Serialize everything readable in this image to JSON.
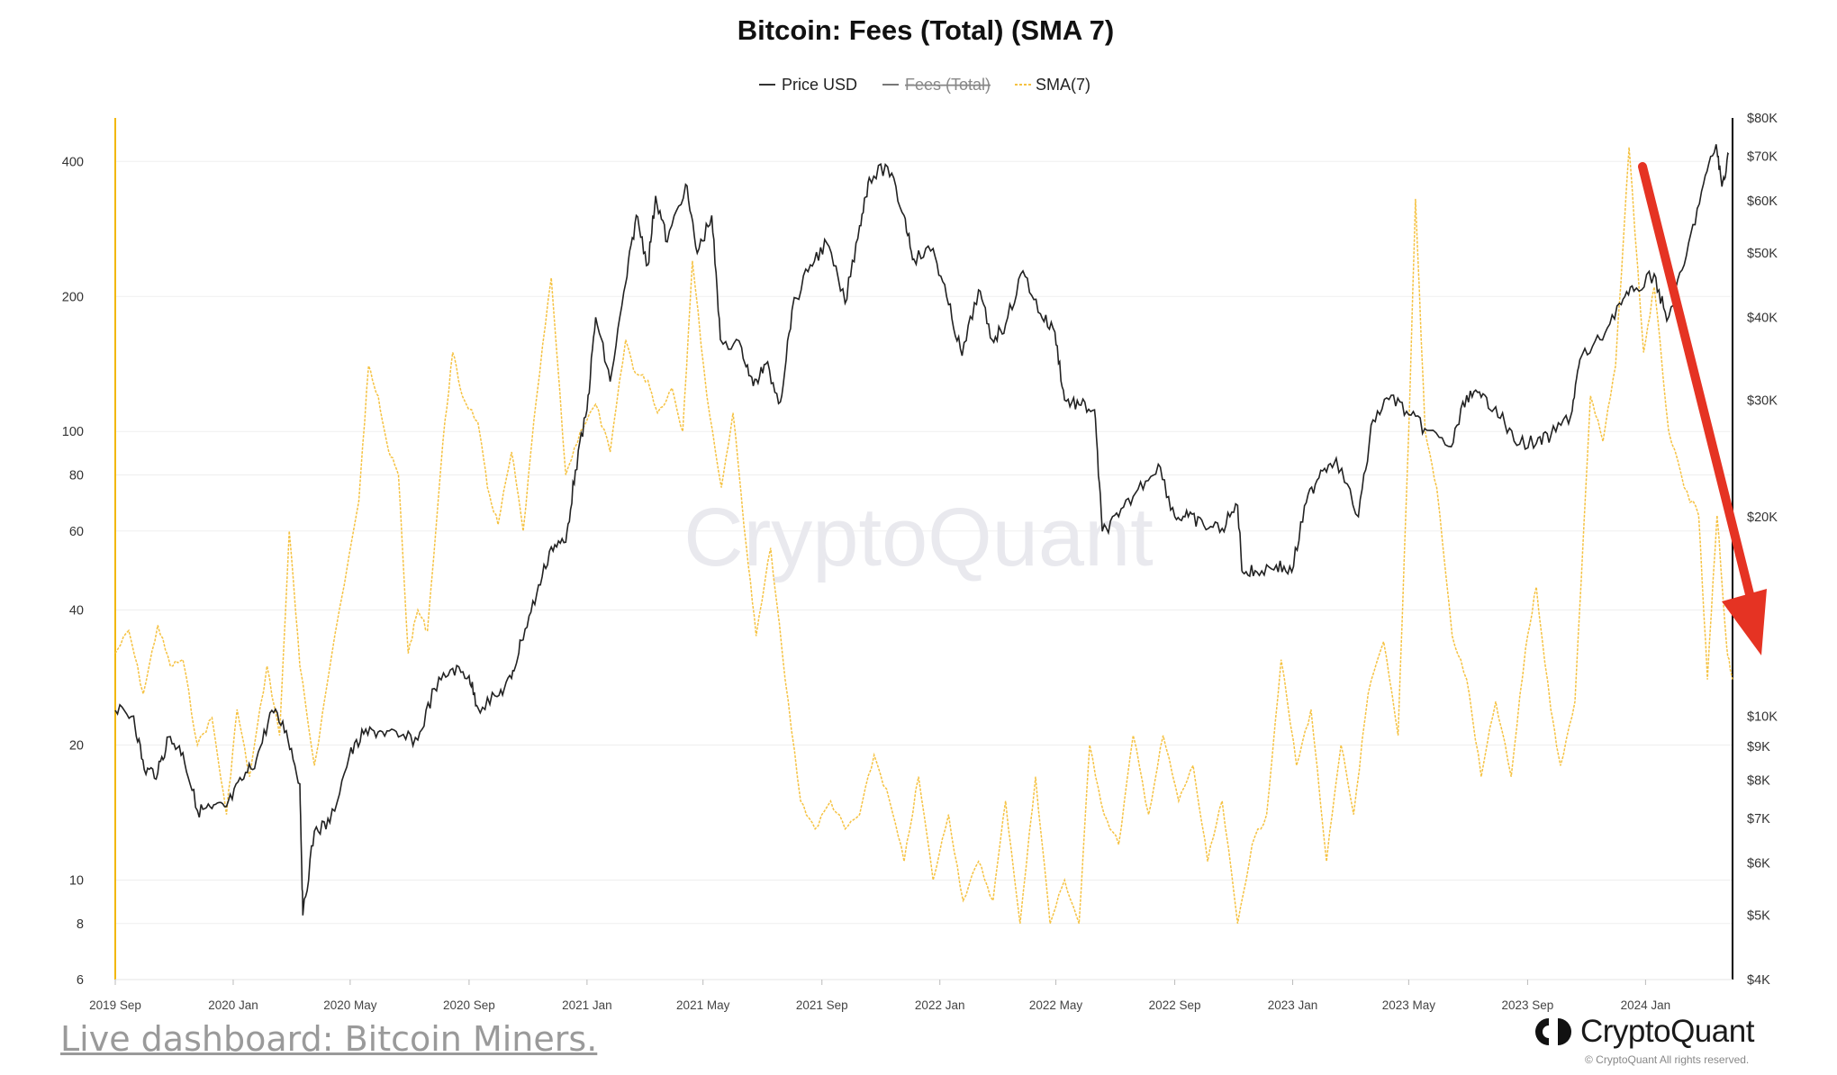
{
  "chart_data": {
    "type": "line",
    "title": "Bitcoin: Fees (Total) (SMA 7)",
    "legend": [
      {
        "name": "Price USD",
        "color": "#333333",
        "hidden": false
      },
      {
        "name": "Fees (Total)",
        "color": "#777777",
        "hidden": true
      },
      {
        "name": "SMA(7)",
        "color": "#f5c242",
        "hidden": false
      }
    ],
    "legend_position": "top-center",
    "x_ticks": [
      "2019 Sep",
      "2020 Jan",
      "2020 May",
      "2020 Sep",
      "2021 Jan",
      "2021 May",
      "2021 Sep",
      "2022 Jan",
      "2022 May",
      "2022 Sep",
      "2023 Jan",
      "2023 May",
      "2023 Sep",
      "2024 Jan"
    ],
    "x_range": [
      "2019-09-01",
      "2024-03-31"
    ],
    "y_left": {
      "scale": "log",
      "ticks": [
        "400",
        "200",
        "100",
        "80",
        "60",
        "40",
        "20",
        "10",
        "8",
        "6"
      ],
      "range": [
        6,
        500
      ]
    },
    "y_right": {
      "scale": "log",
      "ticks": [
        "$80K",
        "$70K",
        "$60K",
        "$50K",
        "$40K",
        "$30K",
        "$20K",
        "$10K",
        "$9K",
        "$8K",
        "$7K",
        "$6K",
        "$5K",
        "$4K"
      ],
      "range": [
        4000,
        80000
      ]
    },
    "grid": true,
    "annotation": "red downward arrow",
    "series": [
      {
        "name": "Price USD",
        "axis": "right",
        "points": [
          [
            "2019-09-01",
            10200
          ],
          [
            "2019-09-20",
            10000
          ],
          [
            "2019-10-01",
            8300
          ],
          [
            "2019-10-15",
            8200
          ],
          [
            "2019-10-26",
            9300
          ],
          [
            "2019-11-10",
            8800
          ],
          [
            "2019-11-25",
            7200
          ],
          [
            "2019-12-10",
            7250
          ],
          [
            "2019-12-25",
            7300
          ],
          [
            "2020-01-10",
            8000
          ],
          [
            "2020-01-25",
            8600
          ],
          [
            "2020-02-10",
            10200
          ],
          [
            "2020-02-25",
            9500
          ],
          [
            "2020-03-10",
            7900
          ],
          [
            "2020-03-13",
            5000
          ],
          [
            "2020-03-25",
            6700
          ],
          [
            "2020-04-10",
            6900
          ],
          [
            "2020-04-30",
            8700
          ],
          [
            "2020-05-15",
            9400
          ],
          [
            "2020-06-01",
            9500
          ],
          [
            "2020-06-20",
            9300
          ],
          [
            "2020-07-10",
            9200
          ],
          [
            "2020-07-27",
            11000
          ],
          [
            "2020-08-15",
            11800
          ],
          [
            "2020-09-01",
            11500
          ],
          [
            "2020-09-10",
            10300
          ],
          [
            "2020-09-30",
            10700
          ],
          [
            "2020-10-15",
            11400
          ],
          [
            "2020-10-25",
            13000
          ],
          [
            "2020-11-10",
            15300
          ],
          [
            "2020-11-25",
            18000
          ],
          [
            "2020-12-10",
            18300
          ],
          [
            "2020-12-20",
            23500
          ],
          [
            "2021-01-01",
            29000
          ],
          [
            "2021-01-10",
            40000
          ],
          [
            "2021-01-25",
            32000
          ],
          [
            "2021-02-10",
            45000
          ],
          [
            "2021-02-21",
            57000
          ],
          [
            "2021-03-05",
            48000
          ],
          [
            "2021-03-13",
            61000
          ],
          [
            "2021-03-25",
            52000
          ],
          [
            "2021-04-13",
            63500
          ],
          [
            "2021-04-25",
            50000
          ],
          [
            "2021-05-10",
            57000
          ],
          [
            "2021-05-19",
            37000
          ],
          [
            "2021-06-10",
            36000
          ],
          [
            "2021-06-22",
            31500
          ],
          [
            "2021-07-05",
            34000
          ],
          [
            "2021-07-20",
            29800
          ],
          [
            "2021-08-01",
            41000
          ],
          [
            "2021-08-20",
            48000
          ],
          [
            "2021-09-06",
            51800
          ],
          [
            "2021-09-25",
            42000
          ],
          [
            "2021-10-10",
            55000
          ],
          [
            "2021-10-20",
            65000
          ],
          [
            "2021-11-08",
            67500
          ],
          [
            "2021-11-25",
            57000
          ],
          [
            "2021-12-05",
            49000
          ],
          [
            "2021-12-25",
            50800
          ],
          [
            "2022-01-10",
            41800
          ],
          [
            "2022-01-24",
            35000
          ],
          [
            "2022-02-10",
            44000
          ],
          [
            "2022-02-24",
            37000
          ],
          [
            "2022-03-10",
            39000
          ],
          [
            "2022-03-28",
            47000
          ],
          [
            "2022-04-15",
            40500
          ],
          [
            "2022-04-30",
            38000
          ],
          [
            "2022-05-10",
            30000
          ],
          [
            "2022-05-25",
            29500
          ],
          [
            "2022-06-10",
            29000
          ],
          [
            "2022-06-18",
            19000
          ],
          [
            "2022-07-05",
            20000
          ],
          [
            "2022-07-25",
            22000
          ],
          [
            "2022-08-15",
            24000
          ],
          [
            "2022-09-01",
            20000
          ],
          [
            "2022-09-15",
            20000
          ],
          [
            "2022-10-01",
            19400
          ],
          [
            "2022-10-20",
            19200
          ],
          [
            "2022-11-05",
            20800
          ],
          [
            "2022-11-10",
            16500
          ],
          [
            "2022-11-25",
            16500
          ],
          [
            "2022-12-15",
            16900
          ],
          [
            "2022-12-31",
            16500
          ],
          [
            "2023-01-15",
            21000
          ],
          [
            "2023-01-30",
            23500
          ],
          [
            "2023-02-15",
            24500
          ],
          [
            "2023-03-10",
            20000
          ],
          [
            "2023-03-25",
            28000
          ],
          [
            "2023-04-13",
            30500
          ],
          [
            "2023-05-01",
            28500
          ],
          [
            "2023-05-20",
            27000
          ],
          [
            "2023-06-14",
            25500
          ],
          [
            "2023-06-30",
            30500
          ],
          [
            "2023-07-15",
            30300
          ],
          [
            "2023-07-30",
            29300
          ],
          [
            "2023-08-18",
            26000
          ],
          [
            "2023-09-10",
            25800
          ],
          [
            "2023-09-25",
            26500
          ],
          [
            "2023-10-16",
            28500
          ],
          [
            "2023-10-25",
            34500
          ],
          [
            "2023-11-15",
            37000
          ],
          [
            "2023-12-05",
            42000
          ],
          [
            "2023-12-20",
            43800
          ],
          [
            "2024-01-10",
            46500
          ],
          [
            "2024-01-23",
            39500
          ],
          [
            "2024-02-10",
            48000
          ],
          [
            "2024-02-28",
            62000
          ],
          [
            "2024-03-14",
            73000
          ],
          [
            "2024-03-20",
            63000
          ],
          [
            "2024-03-27",
            70500
          ]
        ]
      },
      {
        "name": "SMA(7)",
        "axis": "left",
        "points": [
          [
            "2019-09-01",
            32
          ],
          [
            "2019-09-15",
            36
          ],
          [
            "2019-09-30",
            26
          ],
          [
            "2019-10-15",
            37
          ],
          [
            "2019-10-28",
            30
          ],
          [
            "2019-11-10",
            31
          ],
          [
            "2019-11-25",
            20
          ],
          [
            "2019-12-10",
            23
          ],
          [
            "2019-12-25",
            14
          ],
          [
            "2020-01-05",
            24
          ],
          [
            "2020-01-18",
            17
          ],
          [
            "2020-02-05",
            30
          ],
          [
            "2020-02-18",
            21
          ],
          [
            "2020-02-28",
            60
          ],
          [
            "2020-03-10",
            30
          ],
          [
            "2020-03-25",
            18
          ],
          [
            "2020-04-15",
            35
          ],
          [
            "2020-05-10",
            70
          ],
          [
            "2020-05-20",
            140
          ],
          [
            "2020-05-30",
            120
          ],
          [
            "2020-06-10",
            90
          ],
          [
            "2020-06-20",
            80
          ],
          [
            "2020-06-30",
            32
          ],
          [
            "2020-07-10",
            40
          ],
          [
            "2020-07-20",
            36
          ],
          [
            "2020-08-05",
            95
          ],
          [
            "2020-08-15",
            150
          ],
          [
            "2020-08-25",
            120
          ],
          [
            "2020-09-10",
            105
          ],
          [
            "2020-09-20",
            75
          ],
          [
            "2020-10-01",
            62
          ],
          [
            "2020-10-15",
            90
          ],
          [
            "2020-10-27",
            60
          ],
          [
            "2020-11-10",
            120
          ],
          [
            "2020-11-25",
            220
          ],
          [
            "2020-12-10",
            80
          ],
          [
            "2020-12-25",
            100
          ],
          [
            "2021-01-10",
            115
          ],
          [
            "2021-01-25",
            90
          ],
          [
            "2021-02-10",
            160
          ],
          [
            "2021-02-20",
            135
          ],
          [
            "2021-03-05",
            130
          ],
          [
            "2021-03-15",
            110
          ],
          [
            "2021-03-30",
            125
          ],
          [
            "2021-04-10",
            100
          ],
          [
            "2021-04-20",
            240
          ],
          [
            "2021-05-05",
            120
          ],
          [
            "2021-05-20",
            75
          ],
          [
            "2021-06-01",
            110
          ],
          [
            "2021-06-15",
            55
          ],
          [
            "2021-06-25",
            35
          ],
          [
            "2021-07-10",
            55
          ],
          [
            "2021-07-25",
            28
          ],
          [
            "2021-08-10",
            15
          ],
          [
            "2021-08-25",
            13
          ],
          [
            "2021-09-10",
            15
          ],
          [
            "2021-09-25",
            13
          ],
          [
            "2021-10-10",
            14
          ],
          [
            "2021-10-25",
            19
          ],
          [
            "2021-11-10",
            15
          ],
          [
            "2021-11-25",
            11
          ],
          [
            "2021-12-10",
            17
          ],
          [
            "2021-12-25",
            10
          ],
          [
            "2022-01-10",
            14
          ],
          [
            "2022-01-25",
            9
          ],
          [
            "2022-02-10",
            11
          ],
          [
            "2022-02-25",
            9
          ],
          [
            "2022-03-10",
            15
          ],
          [
            "2022-03-25",
            8
          ],
          [
            "2022-04-10",
            17
          ],
          [
            "2022-04-25",
            8
          ],
          [
            "2022-05-10",
            10
          ],
          [
            "2022-05-25",
            8
          ],
          [
            "2022-06-05",
            20
          ],
          [
            "2022-06-20",
            14
          ],
          [
            "2022-07-05",
            12
          ],
          [
            "2022-07-20",
            21
          ],
          [
            "2022-08-05",
            14
          ],
          [
            "2022-08-20",
            21
          ],
          [
            "2022-09-05",
            15
          ],
          [
            "2022-09-20",
            18
          ],
          [
            "2022-10-05",
            11
          ],
          [
            "2022-10-20",
            15
          ],
          [
            "2022-11-05",
            8
          ],
          [
            "2022-11-20",
            12
          ],
          [
            "2022-12-05",
            14
          ],
          [
            "2022-12-20",
            31
          ],
          [
            "2023-01-05",
            18
          ],
          [
            "2023-01-20",
            24
          ],
          [
            "2023-02-05",
            11
          ],
          [
            "2023-02-20",
            20
          ],
          [
            "2023-03-05",
            14
          ],
          [
            "2023-03-20",
            26
          ],
          [
            "2023-04-05",
            34
          ],
          [
            "2023-04-20",
            21
          ],
          [
            "2023-05-01",
            100
          ],
          [
            "2023-05-08",
            330
          ],
          [
            "2023-05-18",
            100
          ],
          [
            "2023-05-30",
            75
          ],
          [
            "2023-06-15",
            35
          ],
          [
            "2023-06-30",
            28
          ],
          [
            "2023-07-15",
            17
          ],
          [
            "2023-07-30",
            25
          ],
          [
            "2023-08-15",
            17
          ],
          [
            "2023-08-30",
            33
          ],
          [
            "2023-09-10",
            45
          ],
          [
            "2023-09-25",
            24
          ],
          [
            "2023-10-05",
            18
          ],
          [
            "2023-10-20",
            25
          ],
          [
            "2023-11-05",
            120
          ],
          [
            "2023-11-18",
            95
          ],
          [
            "2023-12-01",
            140
          ],
          [
            "2023-12-15",
            430
          ],
          [
            "2023-12-30",
            150
          ],
          [
            "2024-01-10",
            210
          ],
          [
            "2024-01-25",
            100
          ],
          [
            "2024-02-10",
            75
          ],
          [
            "2024-02-25",
            65
          ],
          [
            "2024-03-05",
            28
          ],
          [
            "2024-03-15",
            65
          ],
          [
            "2024-03-25",
            33
          ],
          [
            "2024-03-31",
            28
          ]
        ]
      }
    ]
  },
  "footer": {
    "link_text": "Live dashboard: Bitcoin Miners.",
    "brand_name": "CryptoQuant",
    "copyright": "© CryptoQuant All rights reserved."
  },
  "watermark": "CryptoQuant",
  "colors": {
    "price_line": "#222222",
    "sma_line": "#f5c242",
    "left_axis": "#f2b705",
    "right_axis": "#000000",
    "arrow": "#e53323",
    "grid": "#eeeeee"
  }
}
